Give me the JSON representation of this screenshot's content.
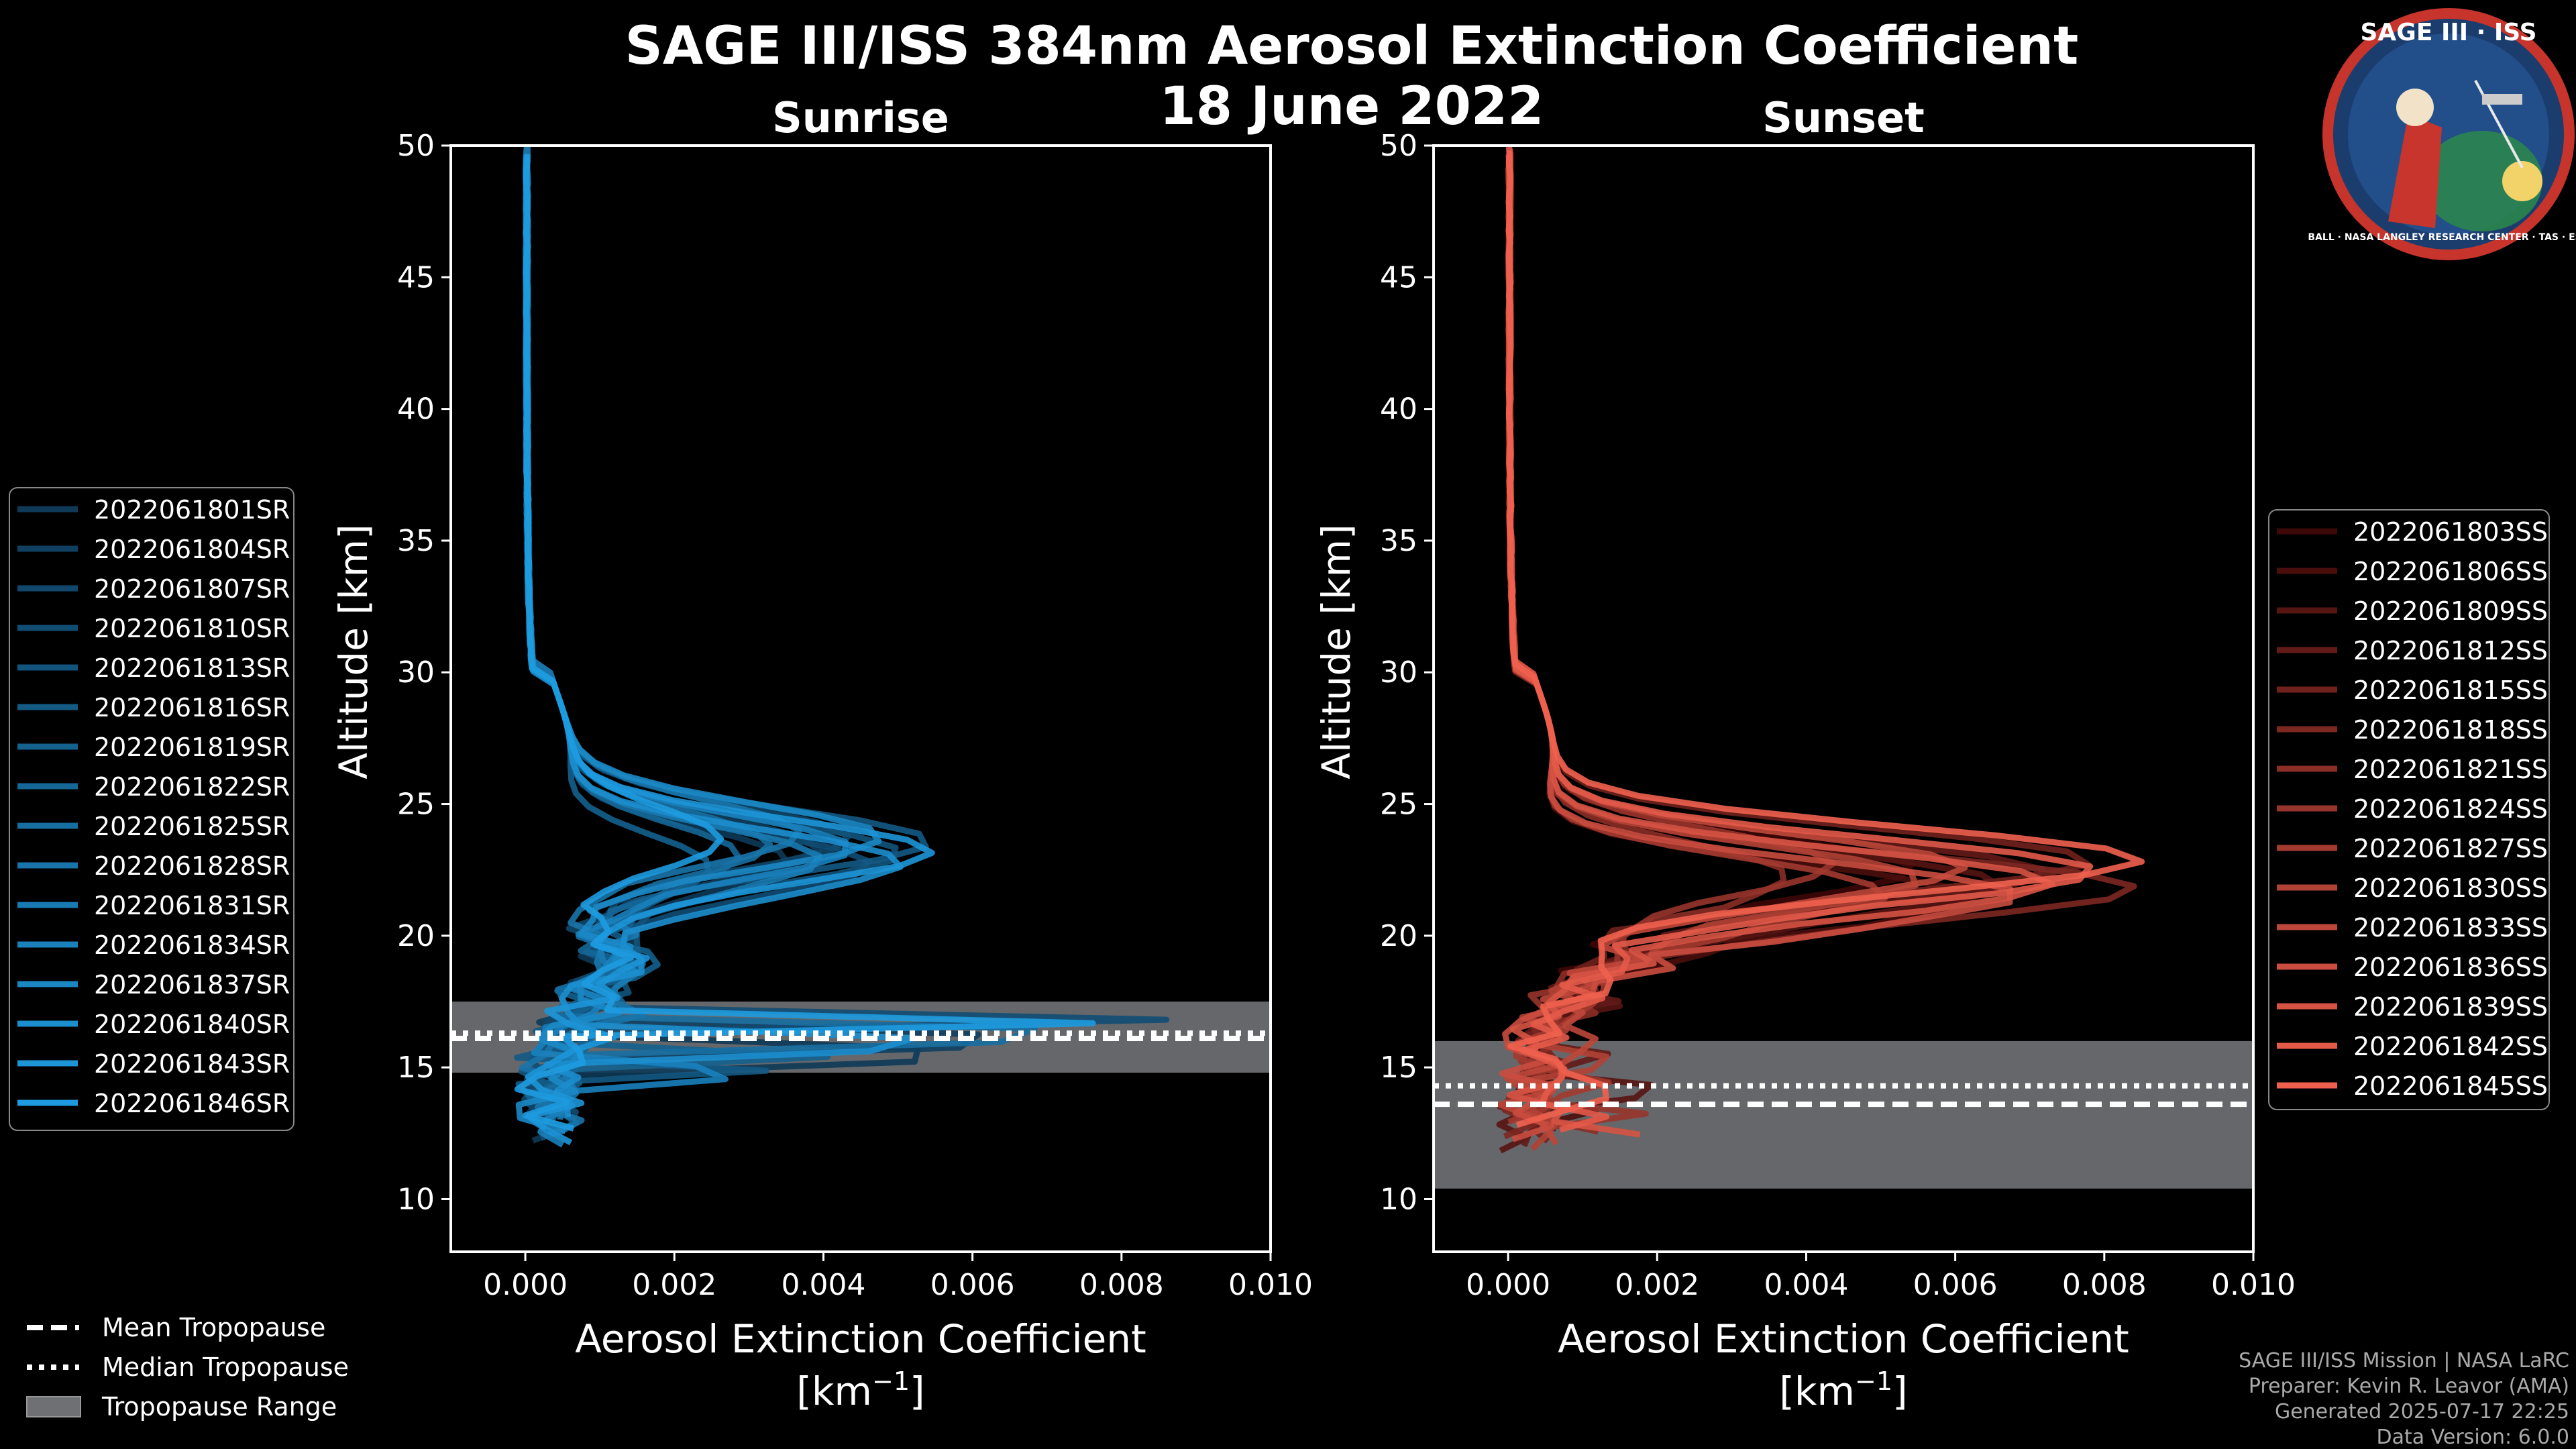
{
  "chart_data": {
    "type": "line",
    "title": "SAGE III/ISS 384nm Aerosol Extinction Coefficient",
    "date": "18 June 2022",
    "logo": {
      "top_text": "SAGE III · ISS",
      "ring_text": "BALL · NASA LANGLEY RESEARCH CENTER · TAS · ESA"
    },
    "xlabel": "Aerosol Extinction Coefficient",
    "xunit": "[km",
    "xunit_sup": "−1",
    "xunit_close": "]",
    "ylabel": "Altitude [km]",
    "xlim": [
      -0.001,
      0.01
    ],
    "ylim": [
      8,
      50
    ],
    "xticks": [
      0.0,
      0.002,
      0.004,
      0.006,
      0.008,
      0.01
    ],
    "xtick_labels": [
      "0.000",
      "0.002",
      "0.004",
      "0.006",
      "0.008",
      "0.010"
    ],
    "yticks": [
      10,
      15,
      20,
      25,
      30,
      35,
      40,
      45,
      50
    ],
    "ytick_labels": [
      "10",
      "15",
      "20",
      "25",
      "30",
      "35",
      "40",
      "45",
      "50"
    ],
    "panels": [
      {
        "name": "sunrise",
        "subtitle": "Sunrise",
        "tropopause": {
          "mean": 16.1,
          "median": 16.3,
          "range": [
            14.8,
            17.5
          ]
        },
        "peak": {
          "altitude": 23.2,
          "base_amplitude": 0.0036
        },
        "legend_labels": [
          "2022061801SR",
          "2022061804SR",
          "2022061807SR",
          "2022061810SR",
          "2022061813SR",
          "2022061816SR",
          "2022061819SR",
          "2022061822SR",
          "2022061825SR",
          "2022061828SR",
          "2022061831SR",
          "2022061834SR",
          "2022061837SR",
          "2022061840SR",
          "2022061843SR",
          "2022061846SR"
        ],
        "color_start": "#0e3a58",
        "color_end": "#1e9be0"
      },
      {
        "name": "sunset",
        "subtitle": "Sunset",
        "tropopause": {
          "mean": 13.6,
          "median": 14.3,
          "range": [
            10.4,
            16.0
          ]
        },
        "peak": {
          "altitude": 22.2,
          "base_amplitude": 0.0058
        },
        "legend_labels": [
          "2022061803SS",
          "2022061806SS",
          "2022061809SS",
          "2022061812SS",
          "2022061815SS",
          "2022061818SS",
          "2022061821SS",
          "2022061824SS",
          "2022061827SS",
          "2022061830SS",
          "2022061833SS",
          "2022061836SS",
          "2022061839SS",
          "2022061842SS",
          "2022061845SS"
        ],
        "color_start": "#3d0808",
        "color_end": "#f0604e"
      }
    ],
    "tropo_legend": [
      "Mean Tropopause",
      "Median Tropopause",
      "Tropopause Range"
    ]
  },
  "credits": [
    "SAGE III/ISS Mission | NASA LaRC",
    "Preparer: Kevin R. Leavor (AMA)",
    "Generated 2025-07-17 22:25",
    "Data Version: 6.0.0"
  ]
}
